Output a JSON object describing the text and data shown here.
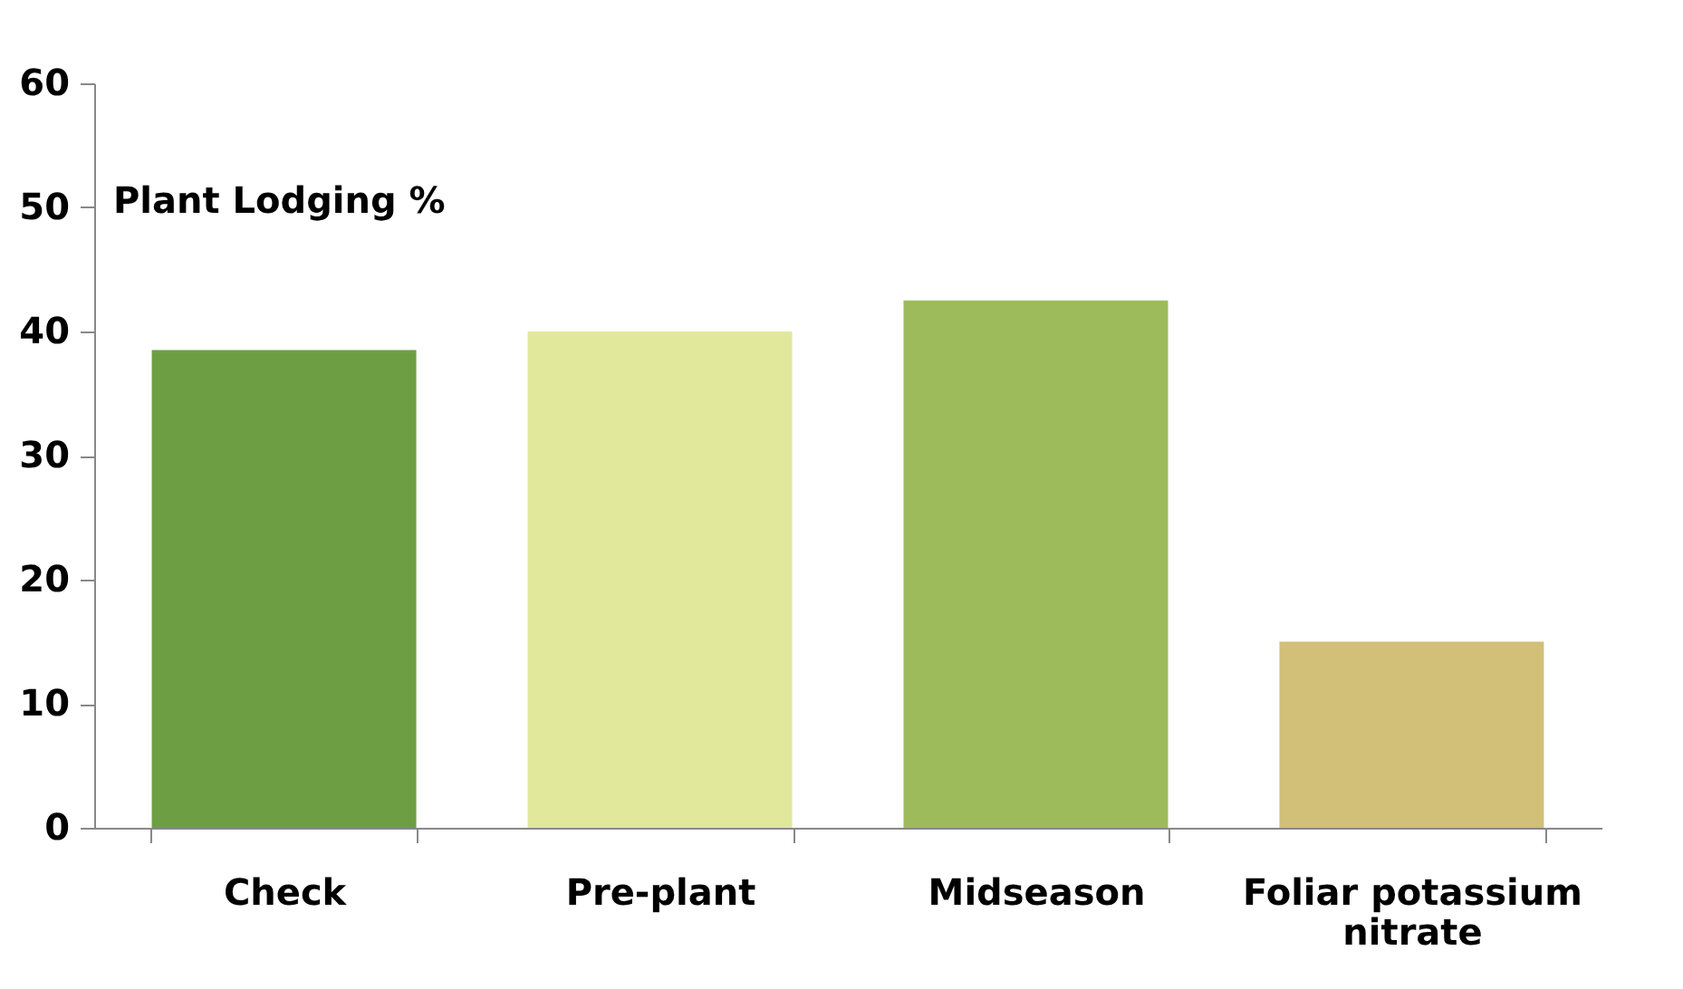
{
  "chart_data": {
    "type": "bar",
    "ylabel": "Plant Lodging %",
    "categories": [
      "Check",
      "Pre-plant",
      "Midseason",
      "Foliar potassium nitrate"
    ],
    "values": [
      38.5,
      40.0,
      42.5,
      15.0
    ],
    "colors": [
      "#6d9e44",
      "#e1e89c",
      "#9dbb5a",
      "#d2bf78"
    ],
    "ylim": [
      0,
      60
    ],
    "yticks": [
      0,
      10,
      20,
      30,
      40,
      50,
      60
    ],
    "grid": false
  }
}
